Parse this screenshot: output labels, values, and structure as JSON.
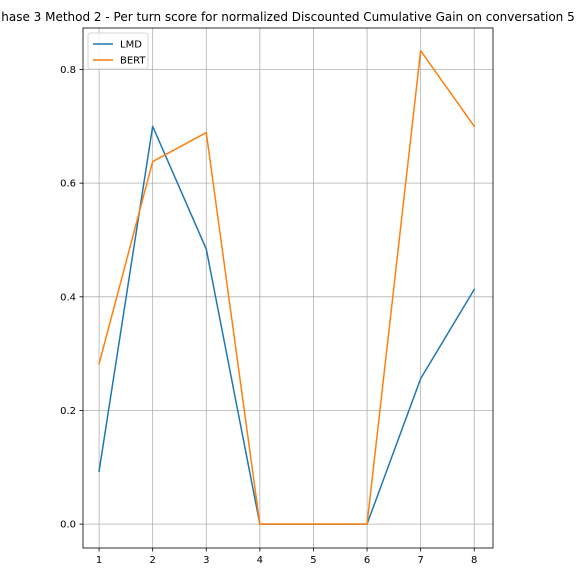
{
  "chart_data": {
    "type": "line",
    "title": "hase 3 Method 2 - Per turn score for normalized Discounted Cumulative Gain on conversation 5",
    "xlabel": "",
    "ylabel": "",
    "x": [
      1,
      2,
      3,
      4,
      5,
      6,
      7,
      8
    ],
    "x_ticks": [
      "1",
      "2",
      "3",
      "4",
      "5",
      "6",
      "7",
      "8"
    ],
    "y_ticks": [
      "0.0",
      "0.2",
      "0.4",
      "0.6",
      "0.8"
    ],
    "xlim": [
      0.7,
      8.35
    ],
    "ylim": [
      -0.042,
      0.873
    ],
    "grid": true,
    "legend_position": "top-left",
    "series": [
      {
        "name": "LMD",
        "color": "#1f77b4",
        "values": [
          0.093,
          0.7,
          0.484,
          0.0,
          0.0,
          0.0,
          0.256,
          0.413
        ]
      },
      {
        "name": "BERT",
        "color": "#ff7f0e",
        "values": [
          0.282,
          0.638,
          0.689,
          0.0,
          0.0,
          0.0,
          0.833,
          0.7
        ]
      }
    ]
  }
}
